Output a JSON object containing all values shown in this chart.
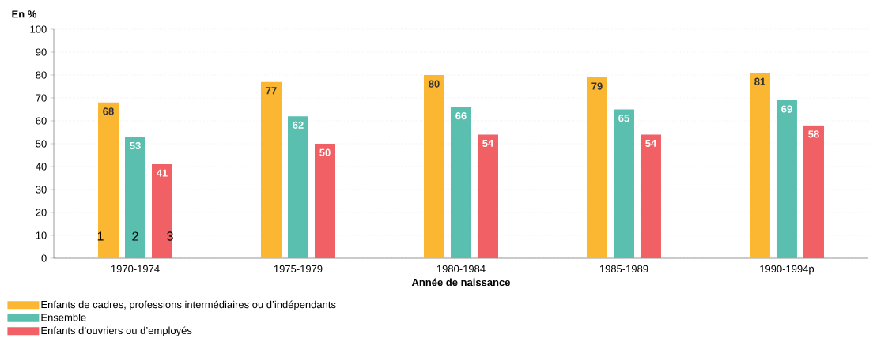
{
  "chart_data": {
    "type": "bar",
    "ylabel": "En %",
    "xlabel": "Année de naissance",
    "categories": [
      "1970-1974",
      "1975-1979",
      "1980-1984",
      "1985-1989",
      "1990-1994p"
    ],
    "series": [
      {
        "name": "Enfants de cadres, professions intermédiaires ou d’indépendants",
        "color": "#fbb731",
        "values": [
          68,
          77,
          80,
          79,
          81
        ]
      },
      {
        "name": "Ensemble",
        "color": "#5bbfb0",
        "values": [
          53,
          62,
          66,
          65,
          69
        ]
      },
      {
        "name": "Enfants d’ouvriers ou d’employés",
        "color": "#f06064",
        "values": [
          41,
          50,
          54,
          54,
          58
        ]
      }
    ],
    "ylim": [
      0,
      100
    ],
    "yticks": [
      0,
      10,
      20,
      30,
      40,
      50,
      60,
      70,
      80,
      90,
      100
    ],
    "grid": "y",
    "legend": "bottom left",
    "data_labels": true,
    "annotations": [
      "1",
      "2",
      "3"
    ]
  }
}
